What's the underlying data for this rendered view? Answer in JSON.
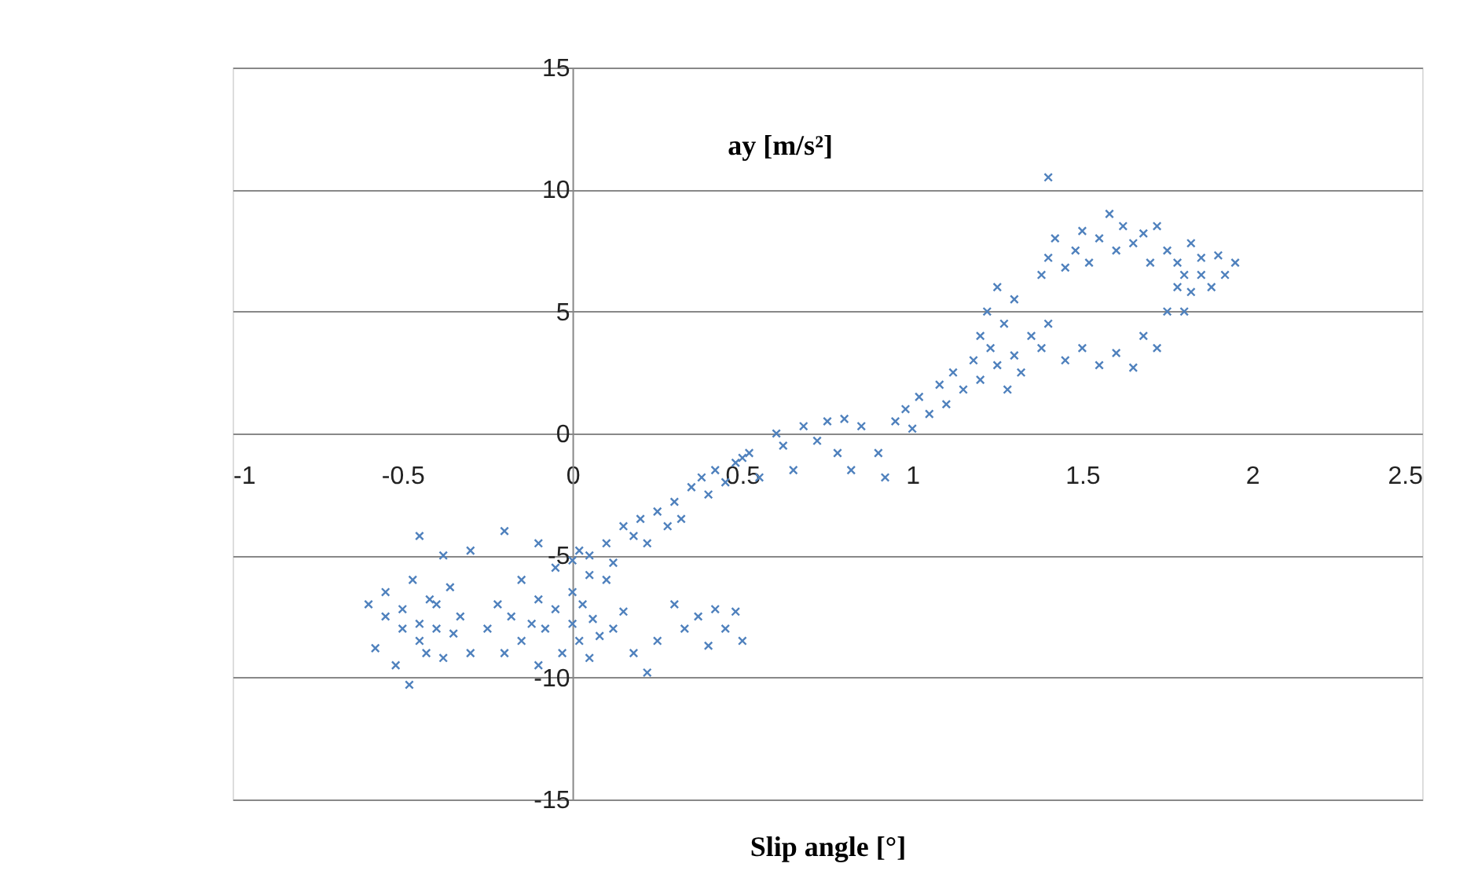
{
  "chart_data": {
    "type": "scatter",
    "xlabel": "Slip angle [°]",
    "ylabel": "ay [m/s²]",
    "xlim": [
      -1,
      2.5
    ],
    "xticks": [
      -1,
      -0.5,
      0,
      0.5,
      1,
      1.5,
      2,
      2.5
    ],
    "ylim": [
      -15,
      15
    ],
    "yticks": [
      -15,
      -10,
      -5,
      0,
      5,
      10,
      15
    ],
    "grid": "y",
    "marker": "cross",
    "series": [
      {
        "color": "#4f81bd",
        "x": [
          -0.6,
          -0.58,
          -0.55,
          -0.55,
          -0.52,
          -0.5,
          -0.5,
          -0.48,
          -0.47,
          -0.45,
          -0.45,
          -0.43,
          -0.42,
          -0.4,
          -0.4,
          -0.38,
          -0.36,
          -0.35,
          -0.33,
          -0.3,
          -0.45,
          -0.38,
          -0.3,
          -0.25,
          -0.22,
          -0.2,
          -0.18,
          -0.15,
          -0.15,
          -0.12,
          -0.1,
          -0.1,
          -0.08,
          -0.05,
          -0.05,
          -0.03,
          0,
          0,
          0.02,
          0.03,
          0.05,
          0.06,
          0.08,
          0.1,
          0.12,
          0.15,
          0.18,
          0.22,
          -0.2,
          -0.1,
          0,
          0.05,
          0.02,
          0.3,
          0.33,
          0.37,
          0.4,
          0.42,
          0.45,
          0.5,
          0.48,
          0.25,
          0.05,
          0.1,
          0.12,
          0.15,
          0.18,
          0.2,
          0.22,
          0.25,
          0.28,
          0.3,
          0.32,
          0.35,
          0.38,
          0.4,
          0.42,
          0.45,
          0.48,
          0.5,
          0.52,
          0.55,
          0.6,
          0.62,
          0.65,
          0.68,
          0.72,
          0.75,
          0.78,
          0.8,
          0.82,
          0.85,
          0.9,
          0.92,
          0.95,
          0.98,
          1.0,
          1.02,
          1.05,
          1.08,
          1.1,
          1.12,
          1.15,
          1.18,
          1.2,
          1.2,
          1.22,
          1.23,
          1.25,
          1.25,
          1.27,
          1.28,
          1.3,
          1.3,
          1.32,
          1.35,
          1.38,
          1.4,
          1.45,
          1.5,
          1.55,
          1.6,
          1.65,
          1.68,
          1.72,
          1.75,
          1.78,
          1.8,
          1.82,
          1.85,
          1.38,
          1.4,
          1.42,
          1.45,
          1.48,
          1.5,
          1.52,
          1.55,
          1.58,
          1.6,
          1.62,
          1.65,
          1.68,
          1.7,
          1.72,
          1.75,
          1.78,
          1.8,
          1.82,
          1.85,
          1.88,
          1.9,
          1.92,
          1.95,
          1.4
        ],
        "values": [
          -7,
          -8.8,
          -7.5,
          -6.5,
          -9.5,
          -8,
          -7.2,
          -10.3,
          -6,
          -8.5,
          -7.8,
          -9,
          -6.8,
          -8,
          -7,
          -9.2,
          -6.3,
          -8.2,
          -7.5,
          -4.8,
          -4.2,
          -5,
          -9,
          -8,
          -7,
          -9,
          -7.5,
          -6,
          -8.5,
          -7.8,
          -9.5,
          -6.8,
          -8,
          -7.2,
          -5.5,
          -9,
          -7.8,
          -6.5,
          -8.5,
          -7,
          -9.2,
          -7.6,
          -8.3,
          -6,
          -8,
          -7.3,
          -9,
          -9.8,
          -4,
          -4.5,
          -5.2,
          -5.8,
          -4.8,
          -7,
          -8,
          -7.5,
          -8.7,
          -7.2,
          -8,
          -8.5,
          -7.3,
          -8.5,
          -5,
          -4.5,
          -5.3,
          -3.8,
          -4.2,
          -3.5,
          -4.5,
          -3.2,
          -3.8,
          -2.8,
          -3.5,
          -2.2,
          -1.8,
          -2.5,
          -1.5,
          -2,
          -1.2,
          -1,
          -0.8,
          -1.8,
          0,
          -0.5,
          -1.5,
          0.3,
          -0.3,
          0.5,
          -0.8,
          0.6,
          -1.5,
          0.3,
          -0.8,
          -1.8,
          0.5,
          1,
          0.2,
          1.5,
          0.8,
          2,
          1.2,
          2.5,
          1.8,
          3,
          4,
          2.2,
          5,
          3.5,
          2.8,
          6,
          4.5,
          1.8,
          3.2,
          5.5,
          2.5,
          4,
          3.5,
          4.5,
          3,
          3.5,
          2.8,
          3.3,
          2.7,
          4,
          3.5,
          5,
          6,
          5,
          5.8,
          6.5,
          6.5,
          7.2,
          8,
          6.8,
          7.5,
          8.3,
          7,
          8,
          9,
          7.5,
          8.5,
          7.8,
          8.2,
          7,
          8.5,
          7.5,
          7,
          6.5,
          7.8,
          7.2,
          6,
          7.3,
          6.5,
          7,
          10.5
        ]
      }
    ]
  }
}
